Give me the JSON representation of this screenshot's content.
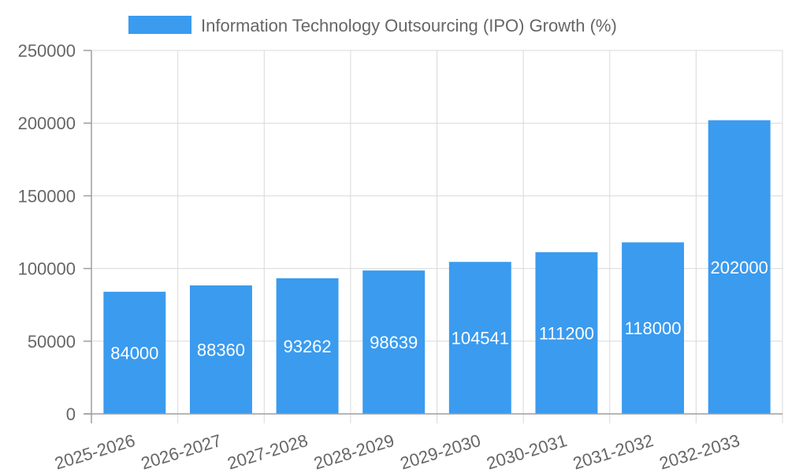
{
  "chart_data": {
    "type": "bar",
    "title": "",
    "xlabel": "",
    "ylabel": "",
    "categories": [
      "2025-2026",
      "2026-2027",
      "2027-2028",
      "2028-2029",
      "2029-2030",
      "2030-2031",
      "2031-2032",
      "2032-2033"
    ],
    "series": [
      {
        "name": "Information Technology Outsourcing (IPO) Growth (%)",
        "values": [
          84000,
          88360,
          93262,
          98639,
          104541,
          111200,
          118000,
          202000
        ],
        "color": "#3a9bef"
      }
    ],
    "ylim": [
      0,
      250000
    ],
    "yticks": [
      0,
      50000,
      100000,
      150000,
      200000,
      250000
    ],
    "ytick_labels": [
      "0",
      "50000",
      "100000",
      "150000",
      "200000",
      "250000"
    ],
    "legend_position": "top-center",
    "grid": true,
    "data_labels": [
      "84000",
      "88360",
      "93262",
      "98639",
      "104541",
      "111200",
      "118000",
      "202000"
    ]
  }
}
